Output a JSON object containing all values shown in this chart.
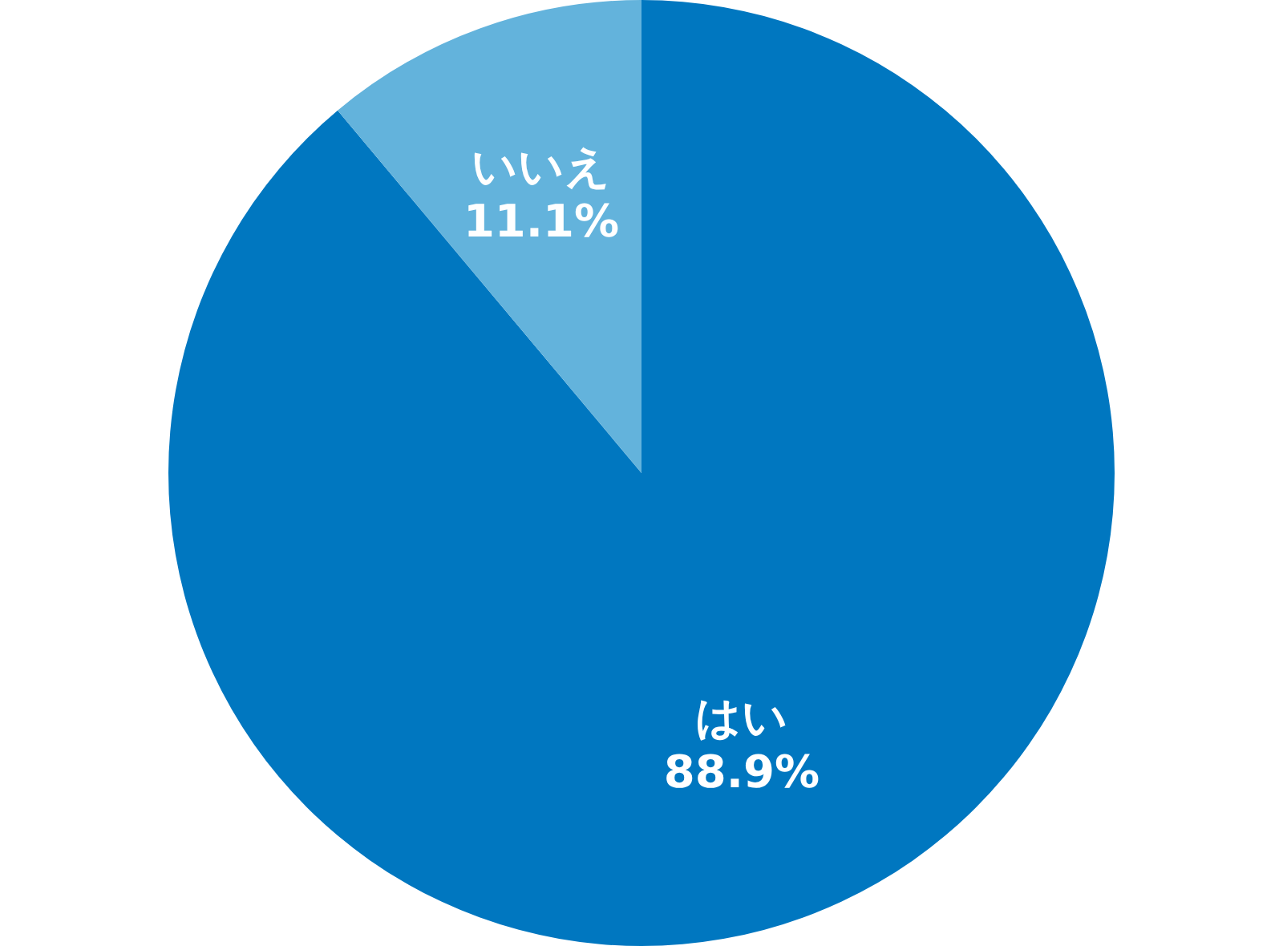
{
  "chart_data": {
    "type": "pie",
    "categories": [
      "はい",
      "いいえ"
    ],
    "values": [
      88.9,
      11.1
    ],
    "colors": [
      "#0077c0",
      "#63b3dc"
    ],
    "value_labels": [
      "88.9%",
      "11.1%"
    ],
    "legend": false
  }
}
